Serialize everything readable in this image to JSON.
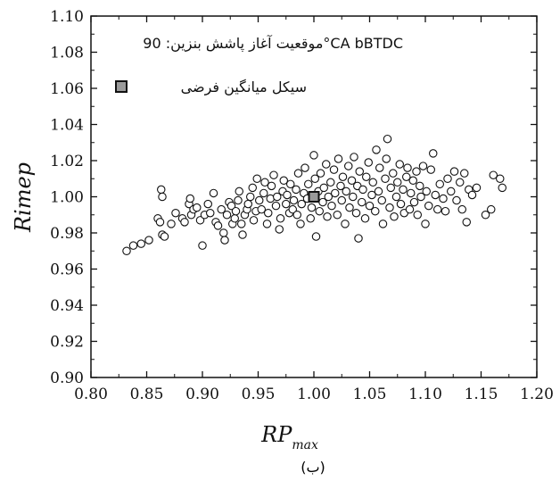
{
  "chart_data": {
    "type": "scatter",
    "title": "",
    "xlabel": "RP",
    "xlabel_sub": "max",
    "ylabel": "Rimep",
    "caption": "(ب)",
    "xlim": [
      0.8,
      1.2
    ],
    "ylim": [
      0.9,
      1.1
    ],
    "x_ticks": [
      "0.80",
      "0.85",
      "0.90",
      "0.95",
      "1.00",
      "1.05",
      "1.10",
      "1.15",
      "1.20"
    ],
    "y_ticks": [
      "0.90",
      "0.92",
      "0.94",
      "0.96",
      "0.98",
      "1.00",
      "1.02",
      "1.04",
      "1.06",
      "1.08",
      "1.10"
    ],
    "grid": false,
    "legend": {
      "position": "top-left",
      "header": "موقعیت آغاز پاشش بنزین: 90°CA bBTDC",
      "entries": [
        {
          "name": "سیکل میانگین فرضی",
          "marker": "gray-square"
        }
      ]
    },
    "series": [
      {
        "marker": "open-circle",
        "points": [
          [
            0.832,
            0.97
          ],
          [
            0.838,
            0.973
          ],
          [
            0.845,
            0.974
          ],
          [
            0.852,
            0.976
          ],
          [
            0.86,
            0.988
          ],
          [
            0.862,
            0.986
          ],
          [
            0.864,
            0.979
          ],
          [
            0.866,
            0.978
          ],
          [
            0.863,
            1.004
          ],
          [
            0.864,
            1.0
          ],
          [
            0.872,
            0.985
          ],
          [
            0.876,
            0.991
          ],
          [
            0.882,
            0.988
          ],
          [
            0.884,
            0.986
          ],
          [
            0.888,
            0.996
          ],
          [
            0.889,
            0.999
          ],
          [
            0.89,
            0.99
          ],
          [
            0.892,
            0.993
          ],
          [
            0.895,
            0.994
          ],
          [
            0.898,
            0.987
          ],
          [
            0.9,
            0.973
          ],
          [
            0.902,
            0.99
          ],
          [
            0.905,
            0.996
          ],
          [
            0.907,
            0.991
          ],
          [
            0.91,
            1.002
          ],
          [
            0.912,
            0.986
          ],
          [
            0.914,
            0.984
          ],
          [
            0.917,
            0.993
          ],
          [
            0.919,
            0.98
          ],
          [
            0.92,
            0.976
          ],
          [
            0.922,
            0.99
          ],
          [
            0.924,
            0.997
          ],
          [
            0.926,
            0.995
          ],
          [
            0.927,
            0.985
          ],
          [
            0.929,
            0.988
          ],
          [
            0.93,
            0.992
          ],
          [
            0.932,
            0.998
          ],
          [
            0.933,
            1.003
          ],
          [
            0.935,
            0.985
          ],
          [
            0.936,
            0.979
          ],
          [
            0.938,
            0.99
          ],
          [
            0.94,
            0.993
          ],
          [
            0.941,
            0.996
          ],
          [
            0.943,
            1.0
          ],
          [
            0.945,
            1.005
          ],
          [
            0.946,
            0.987
          ],
          [
            0.948,
            0.992
          ],
          [
            0.949,
            1.01
          ],
          [
            0.951,
            0.998
          ],
          [
            0.953,
            0.993
          ],
          [
            0.955,
            1.002
          ],
          [
            0.956,
            1.008
          ],
          [
            0.958,
            0.985
          ],
          [
            0.959,
            0.991
          ],
          [
            0.961,
            0.999
          ],
          [
            0.962,
            1.006
          ],
          [
            0.964,
            1.012
          ],
          [
            0.966,
            0.995
          ],
          [
            0.967,
            1.0
          ],
          [
            0.969,
            0.982
          ],
          [
            0.97,
            0.988
          ],
          [
            0.972,
            1.003
          ],
          [
            0.973,
            1.009
          ],
          [
            0.975,
            0.996
          ],
          [
            0.976,
            1.001
          ],
          [
            0.978,
            0.991
          ],
          [
            0.979,
            1.007
          ],
          [
            0.981,
            0.993
          ],
          [
            0.982,
            0.998
          ],
          [
            0.984,
            1.004
          ],
          [
            0.985,
            0.99
          ],
          [
            0.986,
            1.013
          ],
          [
            0.988,
            0.985
          ],
          [
            0.989,
            0.996
          ],
          [
            0.991,
            1.002
          ],
          [
            0.992,
            1.016
          ],
          [
            0.994,
            0.999
          ],
          [
            0.995,
            1.007
          ],
          [
            0.997,
            0.988
          ],
          [
            0.998,
            0.994
          ],
          [
            1.0,
            1.023
          ],
          [
            1.001,
            1.01
          ],
          [
            1.002,
            0.978
          ],
          [
            1.004,
            1.003
          ],
          [
            1.005,
            0.992
          ],
          [
            1.006,
            1.013
          ],
          [
            1.008,
            0.997
          ],
          [
            1.009,
            1.005
          ],
          [
            1.011,
            1.018
          ],
          [
            1.012,
            0.989
          ],
          [
            1.013,
            1.0
          ],
          [
            1.015,
            1.008
          ],
          [
            1.016,
            0.995
          ],
          [
            1.018,
            1.015
          ],
          [
            1.019,
            1.002
          ],
          [
            1.021,
            0.99
          ],
          [
            1.022,
            1.021
          ],
          [
            1.024,
            1.006
          ],
          [
            1.025,
            0.998
          ],
          [
            1.026,
            1.011
          ],
          [
            1.028,
            0.985
          ],
          [
            1.029,
            1.003
          ],
          [
            1.031,
            1.017
          ],
          [
            1.032,
            0.994
          ],
          [
            1.034,
            1.009
          ],
          [
            1.035,
            1.0
          ],
          [
            1.036,
            1.022
          ],
          [
            1.038,
            0.991
          ],
          [
            1.039,
            1.006
          ],
          [
            1.04,
            0.977
          ],
          [
            1.041,
            1.014
          ],
          [
            1.043,
            0.997
          ],
          [
            1.044,
            1.004
          ],
          [
            1.046,
            0.988
          ],
          [
            1.047,
            1.011
          ],
          [
            1.049,
            1.019
          ],
          [
            1.05,
            0.995
          ],
          [
            1.052,
            1.001
          ],
          [
            1.053,
            1.008
          ],
          [
            1.055,
            0.992
          ],
          [
            1.056,
            1.026
          ],
          [
            1.058,
            1.003
          ],
          [
            1.059,
            1.016
          ],
          [
            1.061,
            0.998
          ],
          [
            1.062,
            0.985
          ],
          [
            1.064,
            1.01
          ],
          [
            1.065,
            1.021
          ],
          [
            1.066,
            1.032
          ],
          [
            1.068,
            0.994
          ],
          [
            1.069,
            1.005
          ],
          [
            1.071,
            1.013
          ],
          [
            1.072,
            0.989
          ],
          [
            1.074,
            1.0
          ],
          [
            1.075,
            1.008
          ],
          [
            1.077,
            1.018
          ],
          [
            1.078,
            0.996
          ],
          [
            1.08,
            1.004
          ],
          [
            1.081,
            0.991
          ],
          [
            1.083,
            1.011
          ],
          [
            1.084,
            1.016
          ],
          [
            1.086,
            0.993
          ],
          [
            1.087,
            1.002
          ],
          [
            1.089,
            1.009
          ],
          [
            1.09,
            0.997
          ],
          [
            1.092,
            1.014
          ],
          [
            1.093,
            0.99
          ],
          [
            1.095,
            1.006
          ],
          [
            1.096,
            1.0
          ],
          [
            1.098,
            1.017
          ],
          [
            1.1,
            0.985
          ],
          [
            1.101,
            1.003
          ],
          [
            1.103,
            0.995
          ],
          [
            1.105,
            1.015
          ],
          [
            1.107,
            1.024
          ],
          [
            1.109,
            1.001
          ],
          [
            1.111,
            0.993
          ],
          [
            1.113,
            1.007
          ],
          [
            1.116,
            0.999
          ],
          [
            1.118,
            0.992
          ],
          [
            1.12,
            1.01
          ],
          [
            1.123,
            1.003
          ],
          [
            1.126,
            1.014
          ],
          [
            1.128,
            0.998
          ],
          [
            1.131,
            1.008
          ],
          [
            1.133,
            0.993
          ],
          [
            1.135,
            1.013
          ],
          [
            1.137,
            0.986
          ],
          [
            1.139,
            1.004
          ],
          [
            1.142,
            1.001
          ],
          [
            1.146,
            1.005
          ],
          [
            1.154,
            0.99
          ],
          [
            1.159,
            0.993
          ],
          [
            1.161,
            1.012
          ],
          [
            1.167,
            1.01
          ],
          [
            1.169,
            1.005
          ]
        ]
      },
      {
        "name": "سیکل میانگین فرضی",
        "marker": "gray-square",
        "points": [
          [
            1.0,
            1.0
          ]
        ]
      }
    ],
    "colors": {
      "axis": "#111111",
      "marker_stroke": "#111111",
      "marker_fill": "#ffffff",
      "mean_fill": "#9a9a9a"
    }
  }
}
